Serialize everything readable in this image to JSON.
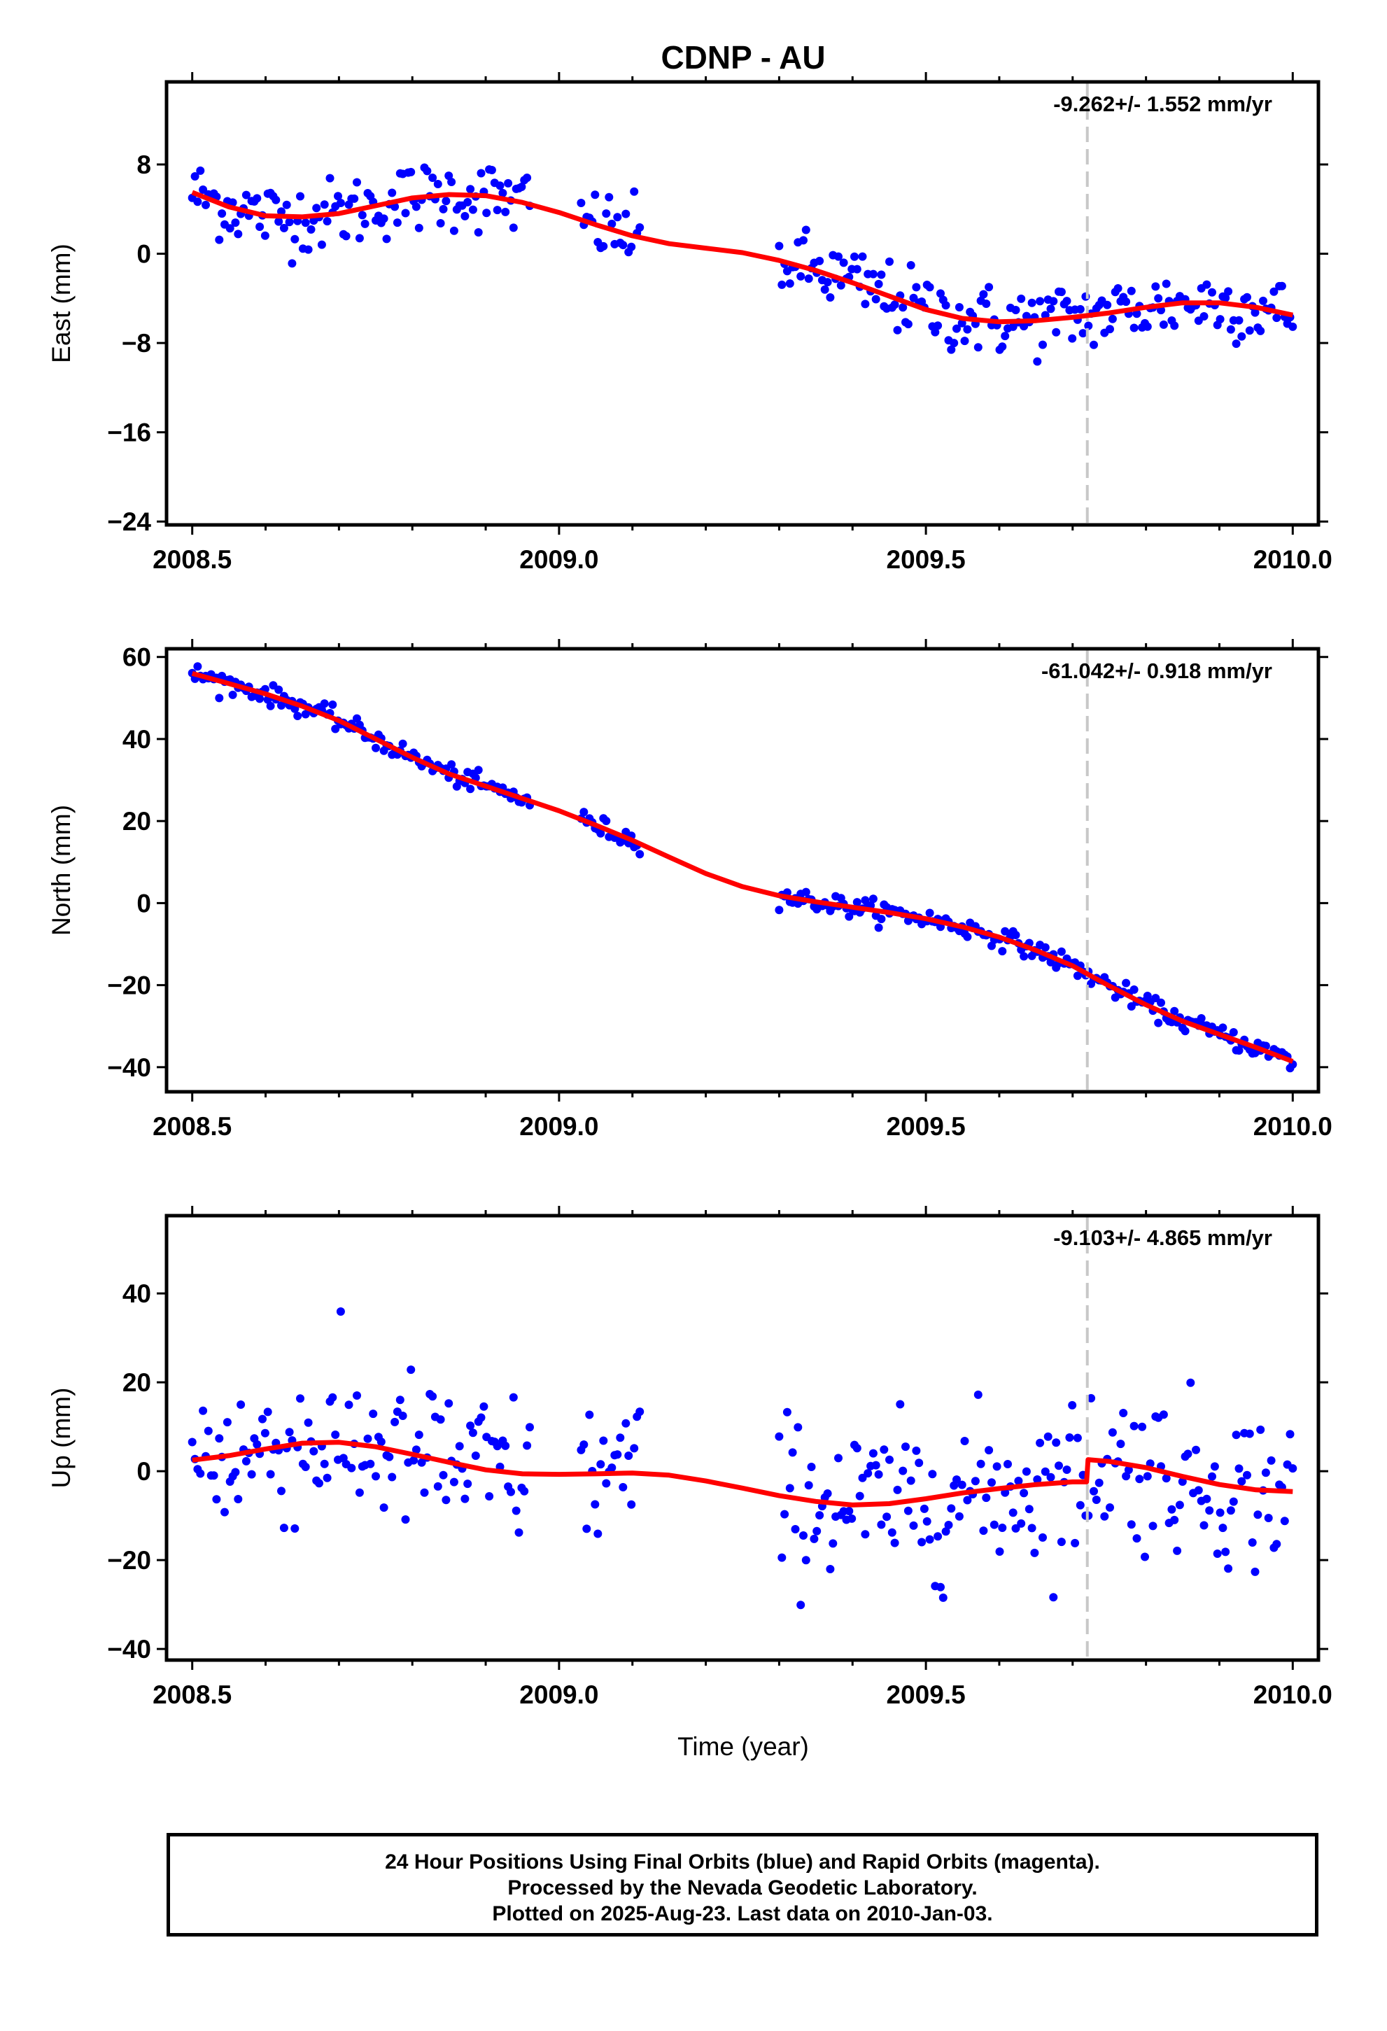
{
  "title": "CDNP - AU",
  "xlabel": "Time (year)",
  "colors": {
    "final_orbits": "#0000ff",
    "model_fit": "#ff0000",
    "event_line": "#c8c8c8",
    "frame": "#000000"
  },
  "footer": {
    "line1": "24 Hour Positions Using Final Orbits (blue) and Rapid Orbits (magenta).",
    "line2": "Processed by the Nevada Geodetic Laboratory.",
    "line3": "Plotted on 2025-Aug-23. Last data on 2010-Jan-03."
  },
  "chart_data": [
    {
      "type": "scatter",
      "ylabel": "East (mm)",
      "rate_label": "-9.262+/- 1.552 mm/yr",
      "xlim": [
        2008.465,
        2010.035
      ],
      "ylim": [
        -24.3,
        15.4
      ],
      "xticks": [
        2008.5,
        2009.0,
        2009.5,
        2010.0
      ],
      "xtick_labels": [
        "2008.5",
        "2009.0",
        "2009.5",
        "2010.0"
      ],
      "yticks": [
        8,
        0,
        -8,
        -16,
        -24
      ],
      "ytick_labels": [
        "8",
        "0",
        "−8",
        "−16",
        "−24"
      ],
      "event_x": 2009.72,
      "segments": [
        [
          2008.5,
          2008.96
        ],
        [
          2009.03,
          2009.11
        ],
        [
          2009.3,
          2010.0
        ]
      ],
      "model": {
        "name": "model fit",
        "x": [
          2008.5,
          2008.55,
          2008.6,
          2008.65,
          2008.7,
          2008.75,
          2008.8,
          2008.85,
          2008.9,
          2008.95,
          2009.0,
          2009.05,
          2009.1,
          2009.15,
          2009.2,
          2009.25,
          2009.3,
          2009.35,
          2009.4,
          2009.45,
          2009.5,
          2009.55,
          2009.6,
          2009.65,
          2009.7,
          2009.75,
          2009.8,
          2009.85,
          2009.9,
          2009.95,
          2010.0
        ],
        "y": [
          5.5,
          4.2,
          3.4,
          3.3,
          3.6,
          4.3,
          5.0,
          5.3,
          5.2,
          4.6,
          3.7,
          2.6,
          1.6,
          0.9,
          0.5,
          0.1,
          -0.6,
          -1.5,
          -2.6,
          -3.8,
          -5.0,
          -5.8,
          -6.1,
          -6.0,
          -5.7,
          -5.3,
          -4.8,
          -4.4,
          -4.4,
          -4.8,
          -5.5
        ]
      },
      "points_summary": {
        "n": 340,
        "scatter_sd": 1.6
      }
    },
    {
      "type": "scatter",
      "ylabel": "North (mm)",
      "rate_label": "-61.042+/- 0.918 mm/yr",
      "xlim": [
        2008.465,
        2010.035
      ],
      "ylim": [
        -46,
        62
      ],
      "xticks": [
        2008.5,
        2009.0,
        2009.5,
        2010.0
      ],
      "xtick_labels": [
        "2008.5",
        "2009.0",
        "2009.5",
        "2010.0"
      ],
      "yticks": [
        60,
        40,
        20,
        0,
        -20,
        -40
      ],
      "ytick_labels": [
        "60",
        "40",
        "20",
        "0",
        "−20",
        "−40"
      ],
      "event_x": 2009.72,
      "segments": [
        [
          2008.5,
          2008.96
        ],
        [
          2009.03,
          2009.11
        ],
        [
          2009.3,
          2010.0
        ]
      ],
      "model": {
        "name": "model fit",
        "x": [
          2008.5,
          2008.55,
          2008.6,
          2008.65,
          2008.7,
          2008.75,
          2008.8,
          2008.85,
          2008.9,
          2008.95,
          2009.0,
          2009.05,
          2009.1,
          2009.15,
          2009.2,
          2009.25,
          2009.3,
          2009.35,
          2009.4,
          2009.45,
          2009.5,
          2009.55,
          2009.6,
          2009.65,
          2009.7,
          2009.75,
          2009.8,
          2009.85,
          2009.9,
          2009.95,
          2010.0
        ],
        "y": [
          56,
          53.5,
          51,
          48,
          44.5,
          40,
          35.5,
          31.5,
          28.5,
          25.5,
          22.5,
          19,
          15.3,
          11.2,
          7.2,
          4.0,
          1.8,
          0.3,
          -1.0,
          -2.3,
          -3.8,
          -5.8,
          -8.3,
          -11.5,
          -15.3,
          -20.2,
          -24.8,
          -28.8,
          -32.0,
          -35.2,
          -38.6
        ]
      },
      "points_summary": {
        "n": 340,
        "scatter_sd": 1.2
      }
    },
    {
      "type": "scatter",
      "ylabel": "Up (mm)",
      "rate_label": "-9.103+/- 4.865 mm/yr",
      "xlim": [
        2008.465,
        2010.035
      ],
      "ylim": [
        -42.5,
        57.5
      ],
      "xticks": [
        2008.5,
        2009.0,
        2009.5,
        2010.0
      ],
      "xtick_labels": [
        "2008.5",
        "2009.0",
        "2009.5",
        "2010.0"
      ],
      "yticks": [
        40,
        20,
        0,
        -20,
        -40
      ],
      "ytick_labels": [
        "40",
        "20",
        "0",
        "−20",
        "−40"
      ],
      "event_x": 2009.72,
      "segments": [
        [
          2008.5,
          2008.96
        ],
        [
          2009.03,
          2009.11
        ],
        [
          2009.3,
          2010.0
        ]
      ],
      "model": {
        "name": "model fit",
        "x": [
          2008.5,
          2008.55,
          2008.6,
          2008.65,
          2008.7,
          2008.75,
          2008.8,
          2008.85,
          2008.9,
          2008.95,
          2009.0,
          2009.05,
          2009.1,
          2009.15,
          2009.2,
          2009.25,
          2009.3,
          2009.35,
          2009.4,
          2009.45,
          2009.5,
          2009.55,
          2009.6,
          2009.65,
          2009.7,
          2009.719,
          2009.721,
          2009.75,
          2009.8,
          2009.85,
          2009.9,
          2009.95,
          2010.0
        ],
        "y": [
          2.5,
          3.5,
          5.0,
          6.3,
          6.5,
          5.5,
          3.8,
          2.0,
          0.3,
          -0.6,
          -0.7,
          -0.6,
          -0.4,
          -0.9,
          -2.2,
          -3.8,
          -5.5,
          -6.8,
          -7.6,
          -7.3,
          -6.2,
          -4.9,
          -3.9,
          -3.0,
          -2.4,
          -2.4,
          2.6,
          2.2,
          0.8,
          -1.2,
          -3.0,
          -4.2,
          -4.6
        ]
      },
      "points_summary": {
        "n": 340,
        "scatter_sd": 9.0
      }
    }
  ]
}
